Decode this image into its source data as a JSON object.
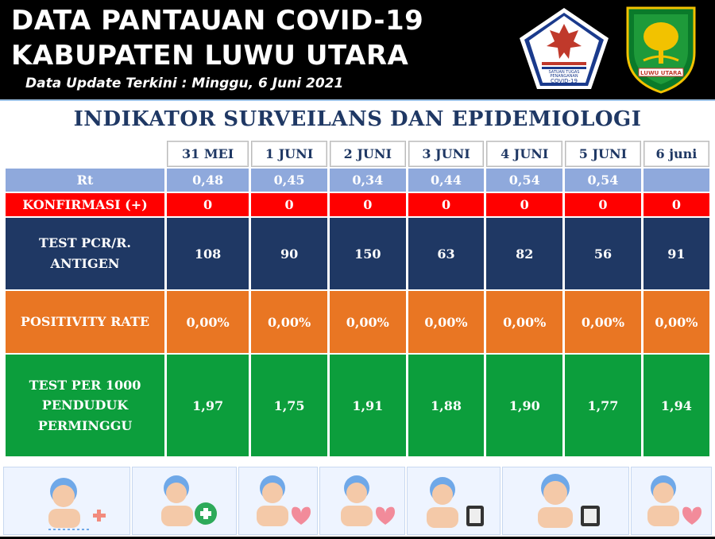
{
  "header": {
    "title_line1": "DATA PANTAUAN COVID-19",
    "title_line2": "KABUPATEN LUWU UTARA",
    "subtitle": "Data Update Terkini : Minggu, 6 Juni 2021",
    "logo_left_text": [
      "SATUAN TUGAS",
      "PENANGANAN",
      "COVID-19"
    ],
    "logo_right_text": "LUWU UTARA"
  },
  "panel": {
    "title": "INDIKATOR SURVEILANS DAN EPIDEMIOLOGI"
  },
  "table": {
    "dates": [
      "31 MEI",
      "1 JUNI",
      "2 JUNI",
      "3 JUNI",
      "4 JUNI",
      "5 JUNI",
      "6 juni"
    ],
    "rows": [
      {
        "label": "Rt",
        "values": [
          "0,48",
          "0,45",
          "0,34",
          "0,44",
          "0,54",
          "0,54",
          ""
        ]
      },
      {
        "label": "KONFIRMASI (+)",
        "values": [
          "0",
          "0",
          "0",
          "0",
          "0",
          "0",
          "0"
        ]
      },
      {
        "label_lines": [
          "TEST PCR/R.",
          "ANTIGEN"
        ],
        "values": [
          "108",
          "90",
          "150",
          "63",
          "82",
          "56",
          "91"
        ]
      },
      {
        "label": "POSITIVITY RATE",
        "values": [
          "0,00%",
          "0,00%",
          "0,00%",
          "0,00%",
          "0,00%",
          "0,00%",
          "0,00%"
        ]
      },
      {
        "label_lines": [
          "TEST PER 1000",
          "PENDUDUK",
          "PERMINGGU"
        ],
        "values": [
          "1,97",
          "1,75",
          "1,91",
          "1,88",
          "1,90",
          "1,77",
          "1,94"
        ]
      }
    ]
  },
  "colors": {
    "rt_row": "#8fa9dc",
    "konfirmasi_row": "#ff0000",
    "pcr_row": "#1f3864",
    "positivity_row": "#e97623",
    "test_row": "#0c9e3c",
    "title_color": "#1f3864"
  },
  "icons": [
    "patient-plus-icon",
    "patient-cross-icon",
    "patient-heart-icon",
    "patient-heart-icon",
    "patient-test-icon",
    "patient-test-icon",
    "patient-heart-icon"
  ]
}
